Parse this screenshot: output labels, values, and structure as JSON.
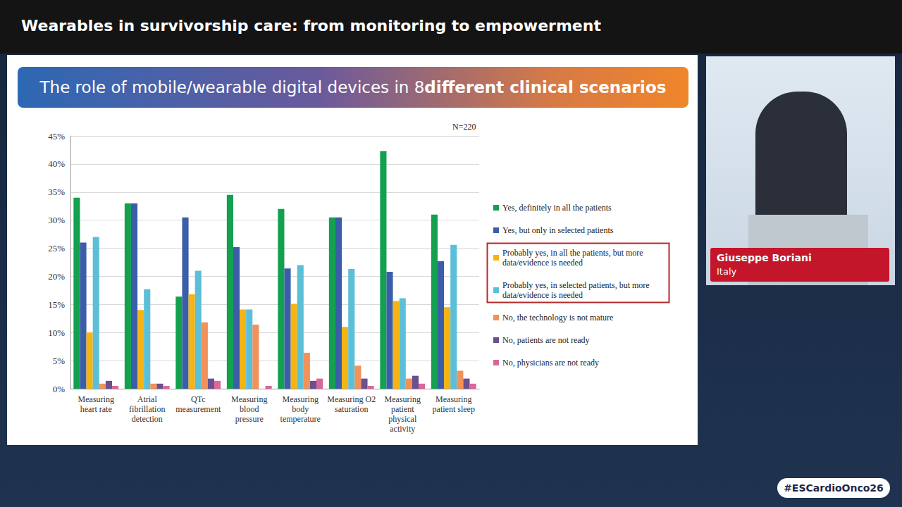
{
  "page": {
    "header": "Wearables in survivorship care: from monitoring to empowerment",
    "slide_title": {
      "plain": "The role of mobile/wearable digital devices in 8 ",
      "bold": "different clinical scenarios"
    },
    "speaker": {
      "name": "Giuseppe Boriani",
      "country": "Italy"
    },
    "hashtag": "#ESCardioOnco26"
  },
  "chart_data": {
    "type": "bar",
    "annotations": [
      "N=220"
    ],
    "categories": [
      "Measuring heart rate",
      "Atrial fibrillation detection",
      "QTc measurement",
      "Measuring blood pressure",
      "Measuring body temperature",
      "Measuring O2 saturation",
      "Measuring patient physical activity",
      "Measuring patient sleep"
    ],
    "series": [
      {
        "name": "Yes, definitely in all the patients",
        "color": "#13a04f",
        "values": [
          34,
          33,
          16.4,
          34.5,
          32,
          30.5,
          42.3,
          31
        ]
      },
      {
        "name": "Yes, but only in selected patients",
        "color": "#3b5ea8",
        "values": [
          26,
          33,
          30.5,
          25.2,
          21.4,
          30.5,
          20.8,
          22.7
        ]
      },
      {
        "name": "Probably yes, in all the patients, but more data/evidence is needed",
        "color": "#f5b414",
        "values": [
          10,
          14,
          16.8,
          14.1,
          15.1,
          11,
          15.6,
          14.5
        ]
      },
      {
        "name": "Probably yes, in selected patients, but more data/evidence is needed",
        "color": "#5cbfd8",
        "values": [
          27,
          17.7,
          21,
          14.1,
          22,
          21.3,
          16.1,
          25.6
        ]
      },
      {
        "name": "No, the technology is not mature",
        "color": "#f0925a",
        "values": [
          0.9,
          0.9,
          11.8,
          11.4,
          6.4,
          4.1,
          1.8,
          3.2
        ]
      },
      {
        "name": "No, patients are not ready",
        "color": "#6b4f8e",
        "values": [
          1.4,
          0.9,
          1.8,
          0,
          1.4,
          1.8,
          2.3,
          1.8
        ]
      },
      {
        "name": "No, physicians are not ready",
        "color": "#d9679a",
        "values": [
          0.5,
          0.5,
          1.4,
          0.5,
          1.8,
          0.5,
          0.9,
          0.9
        ]
      }
    ],
    "ylim": [
      0,
      45
    ],
    "yticks": [
      {
        "value": 0,
        "label": "0%"
      },
      {
        "value": 5,
        "label": "5%"
      },
      {
        "value": 10,
        "label": "10%"
      },
      {
        "value": 15,
        "label": "15%"
      },
      {
        "value": 20,
        "label": "20%"
      },
      {
        "value": 25,
        "label": "25%"
      },
      {
        "value": 30,
        "label": "30%"
      },
      {
        "value": 35,
        "label": "35%"
      },
      {
        "value": 40,
        "label": "40%"
      },
      {
        "value": 45,
        "label": "45%"
      }
    ],
    "grid": true,
    "legend": "right"
  }
}
